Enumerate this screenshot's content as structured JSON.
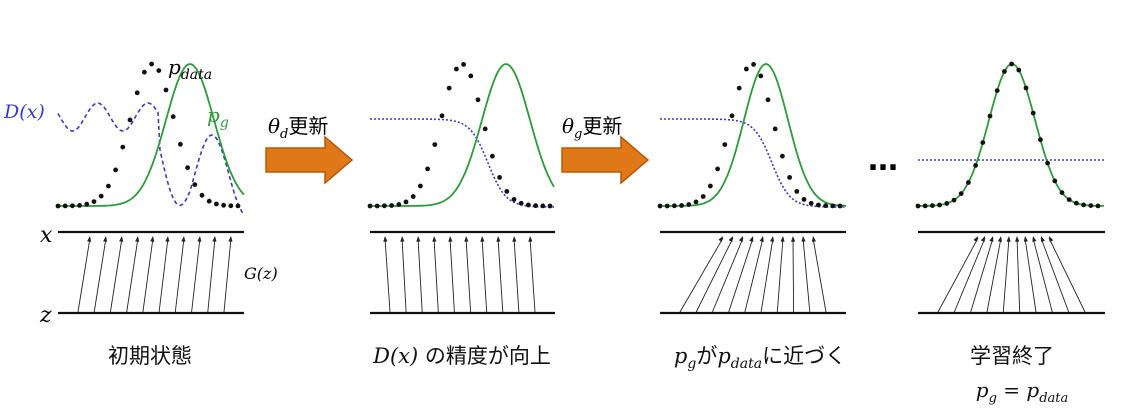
{
  "stages": [
    {
      "caption": "初期状態"
    },
    {
      "caption_var": "D(x)",
      "caption_text": " の精度が向上"
    },
    {
      "caption_p1": "p",
      "caption_p1_sub": "g",
      "caption_mid": "が",
      "caption_p2": "p",
      "caption_p2_sub": "data",
      "caption_end": "に近づく"
    },
    {
      "caption": "学習終了",
      "caption_sub": "p",
      "caption_sub_g": "g",
      "caption_eq": " = p",
      "caption_sub_data": "data"
    }
  ],
  "labels": {
    "p_data": "p",
    "p_data_sub": "data",
    "p_g": "p",
    "p_g_sub": "g",
    "d_x": "D(x)",
    "g_z": "G(z)",
    "x_axis": "x",
    "z_axis": "z",
    "ellipsis": "…"
  },
  "arrows": [
    {
      "symbol": "θ",
      "sub": "d",
      "text": "更新"
    },
    {
      "symbol": "θ",
      "sub": "g",
      "text": "更新"
    }
  ],
  "colors": {
    "p_data": "#111111",
    "p_g": "#2e9a3a",
    "discriminator": "#3a3ac8",
    "arrow": "#e07818",
    "arrow_border": "#b35a0a"
  }
}
